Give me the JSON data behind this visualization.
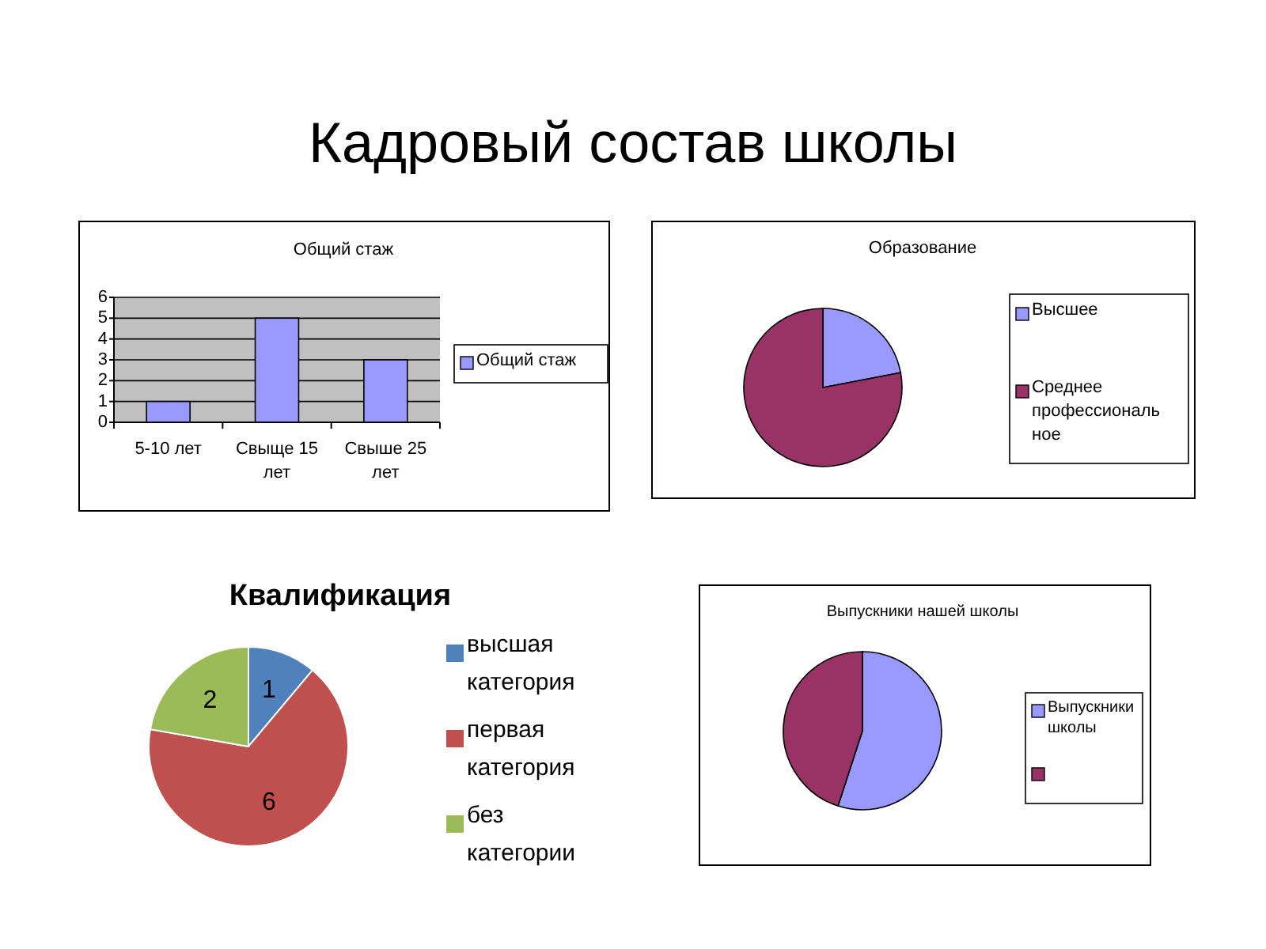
{
  "chart_data": [
    {
      "type": "other",
      "title": "Кадровый состав школы"
    },
    {
      "type": "bar",
      "title": "Общий стаж",
      "categories": [
        "5-10 лет",
        "Свыще 15 лет",
        "Свыше 25 лет"
      ],
      "series": [
        {
          "name": "Общий стаж",
          "color": "#9999ff",
          "values": [
            1,
            5,
            3
          ]
        }
      ],
      "ylim": [
        0,
        6
      ],
      "yticks": [
        0,
        1,
        2,
        3,
        4,
        5,
        6
      ],
      "grid": "y",
      "legend": "right"
    },
    {
      "type": "pie",
      "title": "Образование",
      "categories": [
        "Высшее",
        "Среднее профессиональное"
      ],
      "values": [
        22,
        78
      ],
      "colors": [
        "#9999ff",
        "#993366"
      ],
      "legend": "right"
    },
    {
      "type": "pie",
      "title": "Квалификация",
      "categories": [
        "высшая категория",
        "первая категория",
        "без категории"
      ],
      "values": [
        1,
        6,
        2
      ],
      "colors": [
        "#4f81bd",
        "#c0504d",
        "#9bbb59"
      ],
      "data_labels": true,
      "legend": "right"
    },
    {
      "type": "pie",
      "title": "Выпускники нашей школы",
      "categories": [
        "Выпускники школы",
        null
      ],
      "values": [
        55,
        45
      ],
      "colors": [
        "#9999ff",
        "#993366"
      ],
      "legend": "right"
    }
  ]
}
